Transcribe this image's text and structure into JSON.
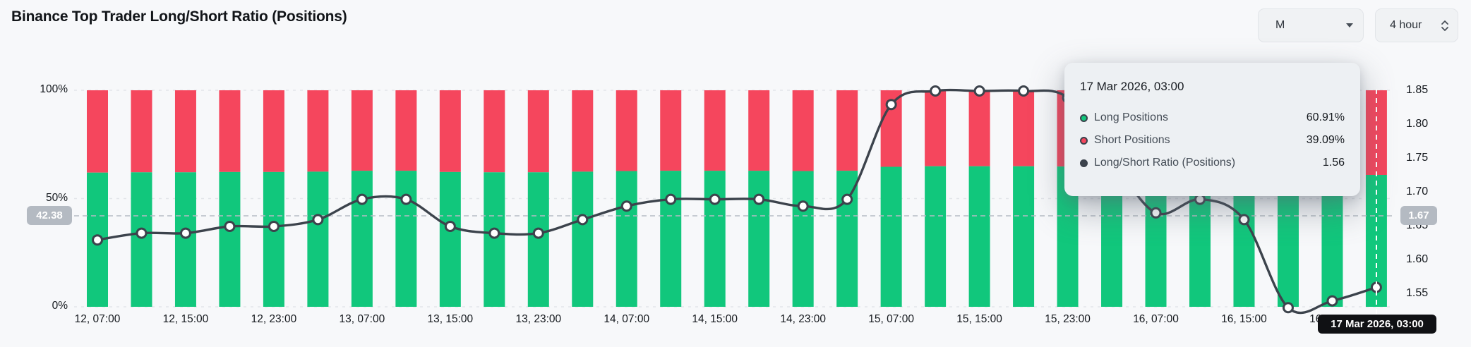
{
  "header": {
    "title": "Binance Top Trader Long/Short Ratio (Positions)"
  },
  "controls": {
    "symbol_dropdown": {
      "value": "M"
    },
    "interval_select": {
      "value": "4 hour"
    }
  },
  "colors": {
    "long": "#11C77C",
    "short": "#F5465D",
    "ratio_line": "#3C434C",
    "background": "#F7F8FA",
    "grid": "#E3E5E9",
    "crosshair": "#B6BCC4",
    "badge_bg": "#B4BAC2",
    "tooltip_bg": "#EDF0F3",
    "selection_label_bg": "#101114"
  },
  "chart_data": {
    "type": "stacked-bar+line",
    "title": "Binance Top Trader Long/Short Ratio (Positions)",
    "n_points": 30,
    "interval": "4 hour",
    "x_tick_labels": [
      "12, 07:00",
      "12, 15:00",
      "12, 23:00",
      "13, 07:00",
      "13, 15:00",
      "13, 23:00",
      "14, 07:00",
      "14, 15:00",
      "14, 23:00",
      "15, 07:00",
      "15, 15:00",
      "15, 23:00",
      "16, 07:00",
      "16, 15:00",
      "16, 23:00"
    ],
    "points_per_x_tick": 2,
    "left_axis": {
      "ticks": [
        "100%",
        "50%",
        "0%"
      ],
      "min": 0,
      "max": 100,
      "unit": "%"
    },
    "right_axis": {
      "ticks": [
        "1.85",
        "1.80",
        "1.75",
        "1.70",
        "1.65",
        "1.60",
        "1.55"
      ],
      "top": 1.85,
      "step": 0.05
    },
    "series": [
      {
        "name": "Long Positions",
        "unit": "%",
        "axis": "left",
        "values": [
          61.98,
          62.12,
          62.12,
          62.26,
          62.26,
          62.41,
          62.83,
          62.83,
          62.26,
          62.12,
          62.12,
          62.41,
          62.69,
          62.83,
          62.83,
          62.83,
          62.69,
          62.83,
          64.66,
          64.91,
          64.91,
          64.91,
          64.79,
          63.64,
          62.55,
          62.83,
          62.41,
          60.47,
          60.63,
          60.91
        ]
      },
      {
        "name": "Short Positions",
        "unit": "%",
        "axis": "left",
        "values": [
          38.02,
          37.88,
          37.88,
          37.74,
          37.74,
          37.59,
          37.17,
          37.17,
          37.74,
          37.88,
          37.88,
          37.59,
          37.31,
          37.17,
          37.17,
          37.17,
          37.31,
          37.17,
          35.34,
          35.09,
          35.09,
          35.09,
          35.21,
          36.36,
          37.45,
          37.17,
          37.59,
          39.53,
          39.37,
          39.09
        ]
      },
      {
        "name": "Long/Short Ratio (Positions)",
        "axis": "right",
        "values": [
          1.63,
          1.64,
          1.64,
          1.65,
          1.65,
          1.66,
          1.69,
          1.69,
          1.65,
          1.64,
          1.64,
          1.66,
          1.68,
          1.69,
          1.69,
          1.69,
          1.68,
          1.69,
          1.83,
          1.85,
          1.85,
          1.85,
          1.84,
          1.75,
          1.67,
          1.69,
          1.66,
          1.53,
          1.54,
          1.56
        ]
      }
    ],
    "crosshair": {
      "left_badge": "42.38",
      "right_badge": "1.67"
    },
    "selection": {
      "index": 29,
      "axis_label": "17 Mar 2026, 03:00"
    },
    "grid": "horizontal-dashed",
    "legend_position": "tooltip-only"
  },
  "tooltip": {
    "title": "17 Mar 2026, 03:00",
    "rows": [
      {
        "label": "Long Positions",
        "value": "60.91%",
        "color": "#11C77C"
      },
      {
        "label": "Short Positions",
        "value": "39.09%",
        "color": "#F5465D"
      },
      {
        "label": "Long/Short Ratio (Positions)",
        "value": "1.56",
        "color": "#3C434C"
      }
    ]
  }
}
